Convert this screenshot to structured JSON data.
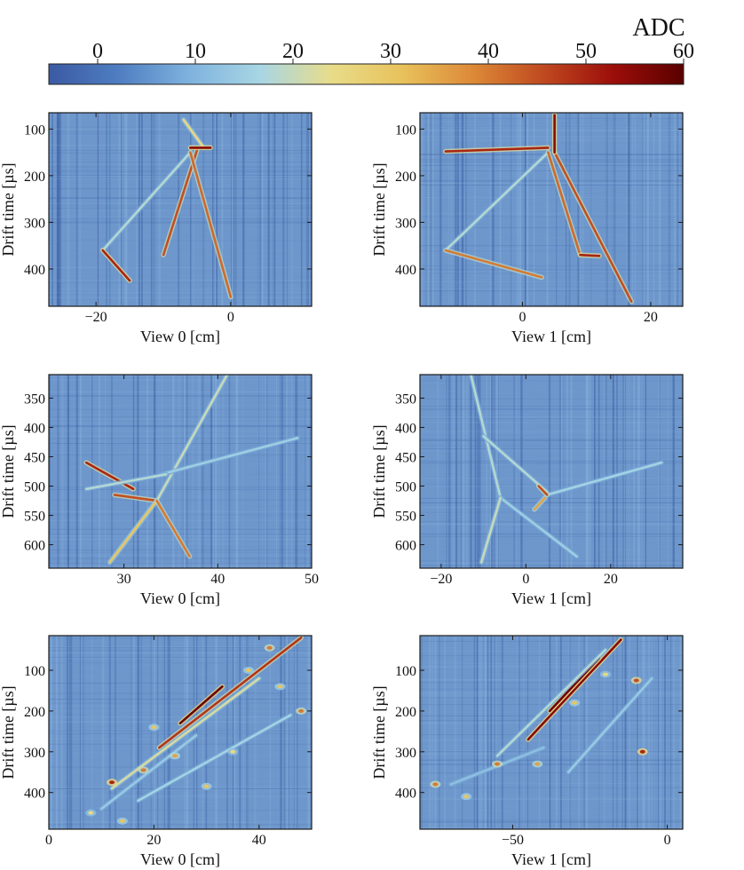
{
  "colorbar": {
    "title": "ADC",
    "range": [
      -5,
      60
    ],
    "ticks": [
      0,
      10,
      20,
      30,
      40,
      50,
      60
    ],
    "colors": [
      "#3b5aa3",
      "#4f7ec2",
      "#7fb3de",
      "#a8d6e4",
      "#e8dc8a",
      "#e8c25c",
      "#dd8a38",
      "#c04a20",
      "#9c0e0a",
      "#5a0000"
    ]
  },
  "chart_data": [
    {
      "type": "heatmap",
      "id": "r1v0",
      "xlabel": "View 0 [cm]",
      "ylabel": "Drift time [µs]",
      "xlim": [
        -27,
        12
      ],
      "ylim": [
        480,
        65
      ],
      "xticks": [
        -20,
        0
      ],
      "xtick_labels": [
        "−20",
        "0"
      ],
      "yticks": [
        100,
        200,
        300,
        400
      ],
      "ytick_labels": [
        "100",
        "200",
        "300",
        "400"
      ],
      "tracks": [
        {
          "x": [
            -19,
            -6
          ],
          "y": [
            360,
            150
          ],
          "adc": 18
        },
        {
          "x": [
            -10,
            -5
          ],
          "y": [
            370,
            145
          ],
          "adc": 45
        },
        {
          "x": [
            -6,
            0
          ],
          "y": [
            150,
            460
          ],
          "adc": 42
        },
        {
          "x": [
            -7,
            -4
          ],
          "y": [
            80,
            140
          ],
          "adc": 25
        },
        {
          "x": [
            -19,
            -15
          ],
          "y": [
            360,
            425
          ],
          "adc": 50
        },
        {
          "x": [
            -6,
            -3
          ],
          "y": [
            140,
            140
          ],
          "adc": 55
        }
      ]
    },
    {
      "type": "heatmap",
      "id": "r1v1",
      "xlabel": "View 1 [cm]",
      "ylabel": "Drift time [µs]",
      "xlim": [
        -16,
        25
      ],
      "ylim": [
        480,
        65
      ],
      "xticks": [
        0,
        20
      ],
      "xtick_labels": [
        "0",
        "20"
      ],
      "yticks": [
        100,
        200,
        300,
        400
      ],
      "ytick_labels": [
        "100",
        "200",
        "300",
        "400"
      ],
      "tracks": [
        {
          "x": [
            -12,
            4
          ],
          "y": [
            148,
            140
          ],
          "adc": 50
        },
        {
          "x": [
            -12,
            4
          ],
          "y": [
            360,
            150
          ],
          "adc": 18
        },
        {
          "x": [
            -12,
            3
          ],
          "y": [
            360,
            418
          ],
          "adc": 40
        },
        {
          "x": [
            5,
            17
          ],
          "y": [
            150,
            470
          ],
          "adc": 45
        },
        {
          "x": [
            4,
            9
          ],
          "y": [
            150,
            370
          ],
          "adc": 42
        },
        {
          "x": [
            9,
            12
          ],
          "y": [
            370,
            372
          ],
          "adc": 50
        },
        {
          "x": [
            5,
            5
          ],
          "y": [
            70,
            150
          ],
          "adc": 55
        }
      ]
    },
    {
      "type": "heatmap",
      "id": "r2v0",
      "xlabel": "View 0 [cm]",
      "ylabel": "Drift time [µs]",
      "xlim": [
        22,
        50
      ],
      "ylim": [
        640,
        310
      ],
      "xticks": [
        30,
        40,
        50
      ],
      "xtick_labels": [
        "30",
        "40",
        "50"
      ],
      "yticks": [
        350,
        400,
        450,
        500,
        550,
        600
      ],
      "ytick_labels": [
        "350",
        "400",
        "450",
        "500",
        "550",
        "600"
      ],
      "tracks": [
        {
          "x": [
            26,
            31
          ],
          "y": [
            460,
            505
          ],
          "adc": 50
        },
        {
          "x": [
            29,
            33.5
          ],
          "y": [
            515,
            525
          ],
          "adc": 45
        },
        {
          "x": [
            33.5,
            41
          ],
          "y": [
            525,
            310
          ],
          "adc": 20
        },
        {
          "x": [
            33.5,
            28.5
          ],
          "y": [
            525,
            630
          ],
          "adc": 30
        },
        {
          "x": [
            33.5,
            37
          ],
          "y": [
            525,
            620
          ],
          "adc": 40
        },
        {
          "x": [
            34,
            48.5
          ],
          "y": [
            480,
            418
          ],
          "adc": 15
        },
        {
          "x": [
            26,
            34.5
          ],
          "y": [
            505,
            480
          ],
          "adc": 18
        }
      ]
    },
    {
      "type": "heatmap",
      "id": "r2v1",
      "xlabel": "View 1 [cm]",
      "ylabel": "Drift time [µs]",
      "xlim": [
        -25,
        37
      ],
      "ylim": [
        640,
        310
      ],
      "xticks": [
        -20,
        0,
        20
      ],
      "xtick_labels": [
        "−20",
        "0",
        "20"
      ],
      "yticks": [
        350,
        400,
        450,
        500,
        550,
        600
      ],
      "ytick_labels": [
        "350",
        "400",
        "450",
        "500",
        "550",
        "600"
      ],
      "tracks": [
        {
          "x": [
            -13,
            -6
          ],
          "y": [
            310,
            520
          ],
          "adc": 18
        },
        {
          "x": [
            -10,
            5
          ],
          "y": [
            415,
            510
          ],
          "adc": 18
        },
        {
          "x": [
            5,
            32
          ],
          "y": [
            515,
            460
          ],
          "adc": 16
        },
        {
          "x": [
            -6,
            12
          ],
          "y": [
            520,
            620
          ],
          "adc": 15
        },
        {
          "x": [
            -6,
            -10.5
          ],
          "y": [
            520,
            630
          ],
          "adc": 20
        },
        {
          "x": [
            3,
            5
          ],
          "y": [
            500,
            515
          ],
          "adc": 45
        },
        {
          "x": [
            2,
            4.5
          ],
          "y": [
            540,
            520
          ],
          "adc": 35
        }
      ]
    },
    {
      "type": "heatmap",
      "id": "r3v0",
      "xlabel": "View 0 [cm]",
      "ylabel": "Drift time [µs]",
      "xlim": [
        0,
        50
      ],
      "ylim": [
        490,
        15
      ],
      "xticks": [
        0,
        20,
        40
      ],
      "xtick_labels": [
        "0",
        "20",
        "40"
      ],
      "yticks": [
        100,
        200,
        300,
        400
      ],
      "ytick_labels": [
        "100",
        "200",
        "300",
        "400"
      ],
      "tracks": [
        {
          "x": [
            21,
            48
          ],
          "y": [
            290,
            20
          ],
          "adc": 48
        },
        {
          "x": [
            25,
            33
          ],
          "y": [
            230,
            140
          ],
          "adc": 58
        },
        {
          "x": [
            12,
            40
          ],
          "y": [
            390,
            120
          ],
          "adc": 22
        },
        {
          "x": [
            17,
            46
          ],
          "y": [
            420,
            210
          ],
          "adc": 16
        },
        {
          "x": [
            10,
            28
          ],
          "y": [
            440,
            260
          ],
          "adc": 14
        }
      ],
      "blobs": [
        {
          "x": 12,
          "y": 375,
          "adc": 50
        },
        {
          "x": 18,
          "y": 345,
          "adc": 40
        },
        {
          "x": 24,
          "y": 310,
          "adc": 35
        },
        {
          "x": 30,
          "y": 385,
          "adc": 30
        },
        {
          "x": 44,
          "y": 140,
          "adc": 30
        },
        {
          "x": 48,
          "y": 200,
          "adc": 40
        },
        {
          "x": 38,
          "y": 100,
          "adc": 30
        },
        {
          "x": 14,
          "y": 470,
          "adc": 30
        },
        {
          "x": 8,
          "y": 450,
          "adc": 25
        },
        {
          "x": 42,
          "y": 45,
          "adc": 40
        },
        {
          "x": 20,
          "y": 240,
          "adc": 30
        },
        {
          "x": 35,
          "y": 300,
          "adc": 25
        }
      ]
    },
    {
      "type": "heatmap",
      "id": "r3v1",
      "xlabel": "View 1 [cm]",
      "ylabel": "Drift time [µs]",
      "xlim": [
        -80,
        5
      ],
      "ylim": [
        490,
        15
      ],
      "xticks": [
        -50,
        0
      ],
      "xtick_labels": [
        "−50",
        "0"
      ],
      "yticks": [
        100,
        200,
        300,
        400
      ],
      "ytick_labels": [
        "100",
        "200",
        "300",
        "400"
      ],
      "tracks": [
        {
          "x": [
            -45,
            -15
          ],
          "y": [
            270,
            25
          ],
          "adc": 55
        },
        {
          "x": [
            -38,
            -22
          ],
          "y": [
            200,
            70
          ],
          "adc": 58
        },
        {
          "x": [
            -55,
            -20
          ],
          "y": [
            310,
            50
          ],
          "adc": 18
        },
        {
          "x": [
            -32,
            -5
          ],
          "y": [
            350,
            120
          ],
          "adc": 14
        },
        {
          "x": [
            -70,
            -40
          ],
          "y": [
            380,
            290
          ],
          "adc": 12
        }
      ],
      "blobs": [
        {
          "x": -75,
          "y": 380,
          "adc": 40
        },
        {
          "x": -55,
          "y": 330,
          "adc": 40
        },
        {
          "x": -42,
          "y": 330,
          "adc": 35
        },
        {
          "x": -8,
          "y": 300,
          "adc": 50
        },
        {
          "x": -10,
          "y": 125,
          "adc": 45
        },
        {
          "x": -65,
          "y": 410,
          "adc": 30
        },
        {
          "x": -30,
          "y": 180,
          "adc": 30
        },
        {
          "x": -20,
          "y": 110,
          "adc": 25
        }
      ]
    }
  ]
}
